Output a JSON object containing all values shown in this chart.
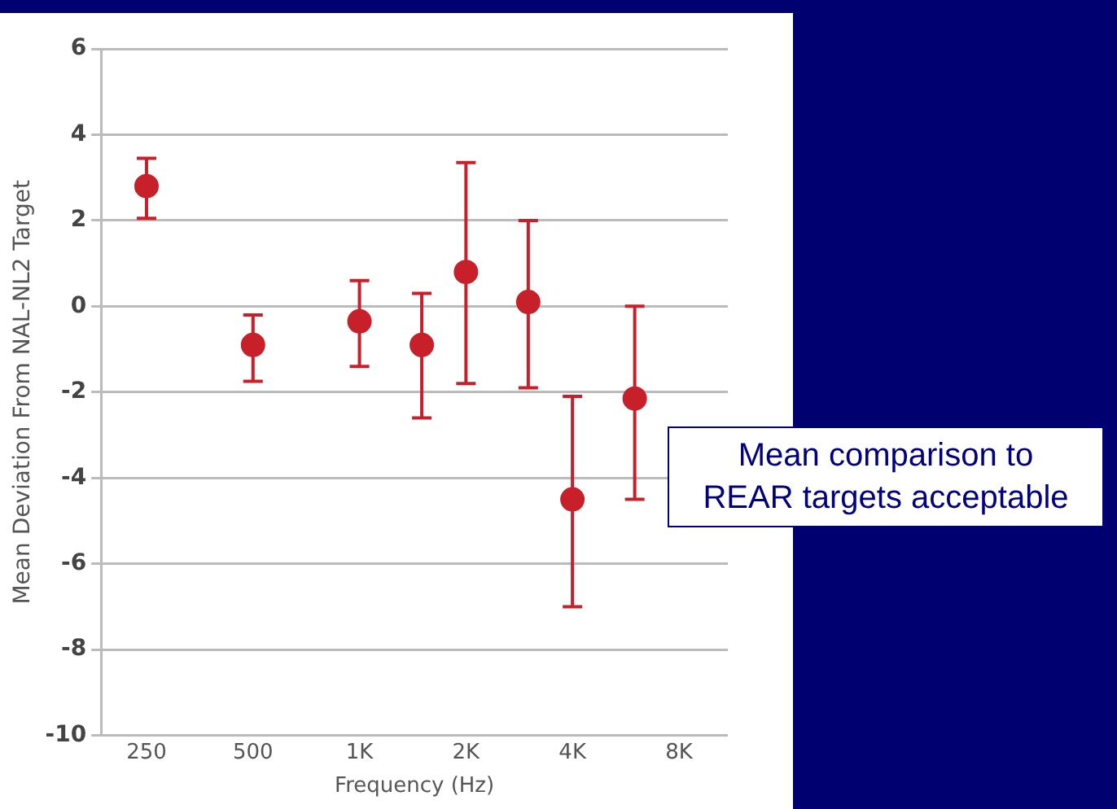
{
  "chart_data": {
    "type": "scatter",
    "xlabel": "Frequency (Hz)",
    "ylabel": "Mean Deviation From NAL-NL2 Target",
    "x": [
      250,
      500,
      1000,
      1500,
      2000,
      3000,
      4000,
      6000
    ],
    "series": [
      {
        "color": "#c8202a",
        "values": [
          2.8,
          -0.9,
          -0.35,
          -0.9,
          0.8,
          0.1,
          -4.5,
          -2.15
        ],
        "errors": [
          [
            2.05,
            3.45
          ],
          [
            -1.75,
            -0.2
          ],
          [
            -1.4,
            0.6
          ],
          [
            -2.6,
            0.3
          ],
          [
            -1.8,
            3.35
          ],
          [
            -1.9,
            2.0
          ],
          [
            -7.0,
            -2.1
          ],
          [
            -4.5,
            0.0
          ]
        ]
      }
    ],
    "log": "x",
    "xlim": [
      186,
      11000
    ],
    "xticks": [
      250,
      500,
      {
        "value": 1000,
        "label": "1K"
      },
      {
        "value": 2000,
        "label": "2K"
      },
      {
        "value": 4000,
        "label": "4K"
      },
      {
        "value": 8000,
        "label": "8K"
      }
    ],
    "ylim": [
      -10,
      6
    ],
    "yticks": [
      -10,
      -8,
      -6,
      -4,
      -2,
      0,
      2,
      4,
      6
    ],
    "grid": "y",
    "marker": "circle",
    "legend": false,
    "annotations": [
      "Mean comparison to REAR targets acceptable"
    ]
  }
}
